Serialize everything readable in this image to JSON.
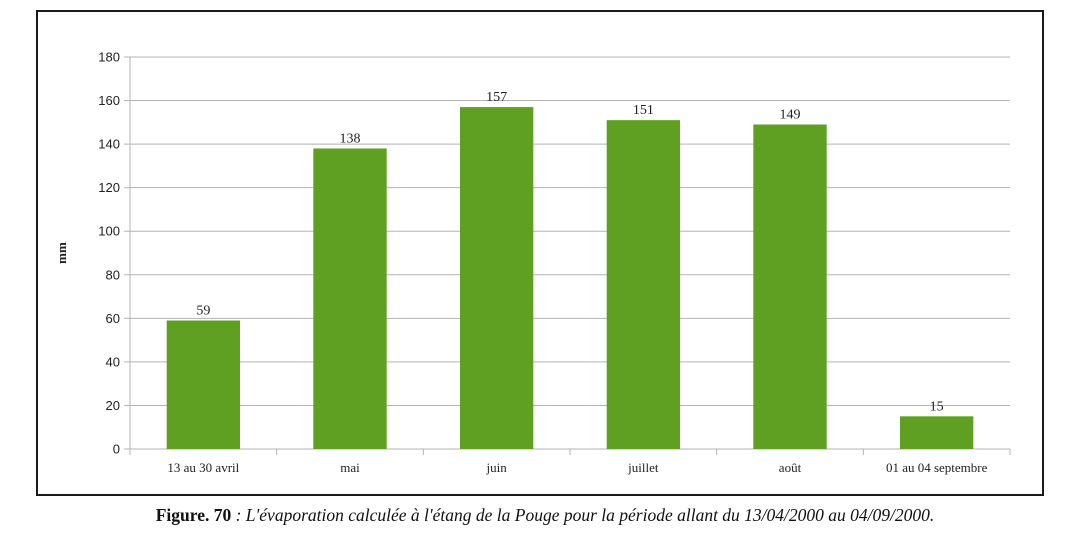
{
  "chart_data": {
    "type": "bar",
    "categories": [
      "13 au 30 avril",
      "mai",
      "juin",
      "juillet",
      "août",
      "01 au 04 septembre"
    ],
    "values": [
      59,
      138,
      157,
      151,
      149,
      15
    ],
    "data_labels": [
      "59",
      "138",
      "157",
      "151",
      "149",
      "15"
    ],
    "title": "",
    "xlabel": "",
    "ylabel": "mm",
    "ylim": [
      0,
      180
    ],
    "yticks": [
      0,
      20,
      40,
      60,
      80,
      100,
      120,
      140,
      160,
      180
    ],
    "ytick_labels": [
      "0",
      "20",
      "40",
      "60",
      "80",
      "100",
      "120",
      "140",
      "160",
      "180"
    ],
    "grid": true,
    "legend": "none",
    "bar_color": "#5fa023",
    "grid_color": "#b3b3b3"
  },
  "caption": {
    "label": "Figure. 70",
    "text": " : L'évaporation calculée à l'étang de la Pouge pour la période allant du 13/04/2000 au 04/09/2000."
  }
}
